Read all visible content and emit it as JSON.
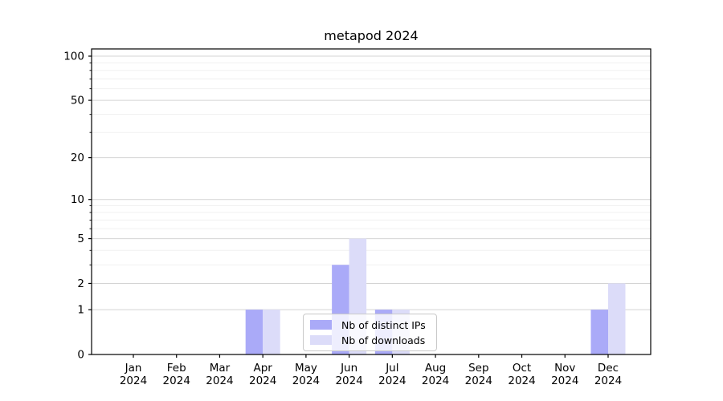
{
  "title": "metapod 2024",
  "chart_data": {
    "type": "bar",
    "title": "metapod 2024",
    "categories": [
      "Jan",
      "Feb",
      "Mar",
      "Apr",
      "May",
      "Jun",
      "Jul",
      "Aug",
      "Sep",
      "Oct",
      "Nov",
      "Dec"
    ],
    "year": "2024",
    "series": [
      {
        "name": "Nb of distinct IPs",
        "color": "#aaaaf8",
        "values": [
          0,
          0,
          0,
          1,
          0,
          3,
          1,
          0,
          0,
          0,
          0,
          1
        ]
      },
      {
        "name": "Nb of downloads",
        "color": "#dcdcf9",
        "values": [
          0,
          0,
          0,
          1,
          0,
          5,
          1,
          0,
          0,
          0,
          0,
          2
        ]
      }
    ],
    "yscale": "log1p",
    "yticks": [
      0,
      1,
      2,
      5,
      10,
      20,
      50,
      100
    ],
    "minor_yticks": [
      3,
      4,
      6,
      7,
      8,
      9,
      30,
      40,
      60,
      70,
      80,
      90
    ],
    "ylim": [
      0,
      112
    ],
    "grid": "horizontal",
    "legend_position": "lower-center-inside",
    "colors": {
      "axis": "#000000",
      "tick_label": "#000000",
      "grid_major": "#d4d4d4",
      "grid_minor": "#f0f0f0"
    }
  }
}
